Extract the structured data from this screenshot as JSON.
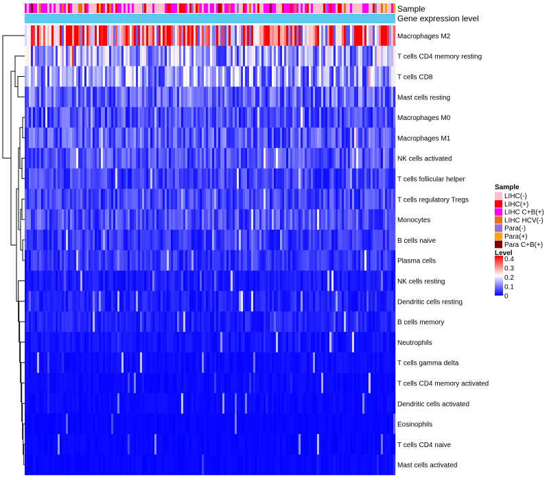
{
  "chart_data": {
    "type": "heatmap",
    "annotation_rows": [
      "Sample",
      "Gene expression level"
    ],
    "rows": [
      {
        "name": "Macrophages M2",
        "mean": 0.28
      },
      {
        "name": "T cells CD4 memory resting",
        "mean": 0.13
      },
      {
        "name": "T cells CD8",
        "mean": 0.12
      },
      {
        "name": "Mast cells resting",
        "mean": 0.08
      },
      {
        "name": "Macrophages M0",
        "mean": 0.06
      },
      {
        "name": "Macrophages M1",
        "mean": 0.07
      },
      {
        "name": "NK cells activated",
        "mean": 0.06
      },
      {
        "name": "T cells follicular helper",
        "mean": 0.05
      },
      {
        "name": "T cells regulatory  Tregs",
        "mean": 0.05
      },
      {
        "name": "Monocytes",
        "mean": 0.06
      },
      {
        "name": "B cells naive",
        "mean": 0.04
      },
      {
        "name": "Plasma cells",
        "mean": 0.04
      },
      {
        "name": "NK cells resting",
        "mean": 0.02
      },
      {
        "name": "Dendritic cells resting",
        "mean": 0.025
      },
      {
        "name": "B cells memory",
        "mean": 0.025
      },
      {
        "name": "Neutrophils",
        "mean": 0.015
      },
      {
        "name": "T cells gamma delta",
        "mean": 0.01
      },
      {
        "name": "T cells CD4 memory activated",
        "mean": 0.008
      },
      {
        "name": "Dendritic cells activated",
        "mean": 0.008
      },
      {
        "name": "Eosinophils",
        "mean": 0.005
      },
      {
        "name": "T cells CD4 naive",
        "mean": 0.006
      },
      {
        "name": "Mast cells activated",
        "mean": 0.006
      }
    ],
    "legend_sample": {
      "title": "Sample",
      "entries": [
        {
          "label": "LIHC(-)",
          "color": "#ffc0cb"
        },
        {
          "label": "LIHC(+)",
          "color": "#ff0000"
        },
        {
          "label": "LIHC C+B(+)",
          "color": "#ff00ff"
        },
        {
          "label": "LIHC HCV(-)",
          "color": "#e07020"
        },
        {
          "label": "Para(-)",
          "color": "#9370db"
        },
        {
          "label": "Para(+)",
          "color": "#ffa500"
        },
        {
          "label": "Para C+B(+)",
          "color": "#800000"
        }
      ]
    },
    "legend_level": {
      "title": "Level",
      "ticks": [
        {
          "label": "0.4",
          "value": 0.4
        },
        {
          "label": "0.3",
          "value": 0.3
        },
        {
          "label": "0.2",
          "value": 0.2
        },
        {
          "label": "0.1",
          "value": 0.1
        },
        {
          "label": "0",
          "value": 0
        }
      ],
      "range": [
        0,
        0.4
      ],
      "colors": [
        "#0000ff",
        "#ffffff",
        "#ff0000"
      ]
    },
    "gene_expression_color": "#5bc8f0"
  }
}
